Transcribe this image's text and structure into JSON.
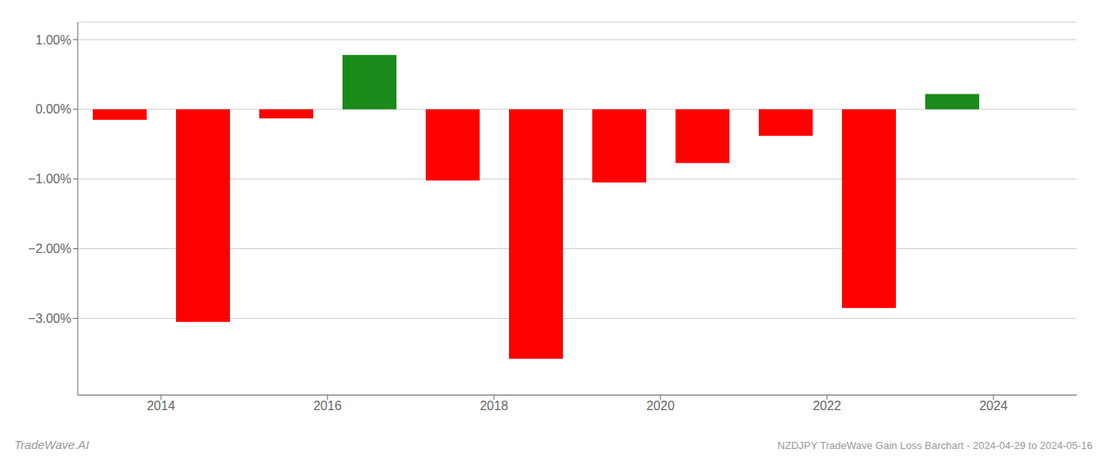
{
  "chart_data": {
    "type": "bar",
    "title": "NZDJPY TradeWave Gain Loss Barchart - 2024-04-29 to 2024-05-16",
    "annotations": [
      "TradeWave.AI"
    ],
    "x": [
      2013.5,
      2014.5,
      2015.5,
      2016.5,
      2017.5,
      2018.5,
      2019.5,
      2020.5,
      2021.5,
      2022.5,
      2023.5
    ],
    "values": [
      -0.15,
      -3.05,
      -0.13,
      0.78,
      -1.02,
      -3.58,
      -1.05,
      -0.77,
      -0.38,
      -2.85,
      0.22
    ],
    "colors": [
      "#ff0000",
      "#ff0000",
      "#ff0000",
      "#1a8a1a",
      "#ff0000",
      "#ff0000",
      "#ff0000",
      "#ff0000",
      "#ff0000",
      "#ff0000",
      "#1a8a1a"
    ],
    "xlim": [
      2013.0,
      2025.0
    ],
    "xticks": [
      2014,
      2016,
      2018,
      2020,
      2022,
      2024
    ],
    "ylim": [
      -4.1,
      1.25
    ],
    "yticks": [
      {
        "value": 1.0,
        "label": "1.00%"
      },
      {
        "value": 0.0,
        "label": "0.00%"
      },
      {
        "value": -1.0,
        "label": "−1.00%"
      },
      {
        "value": -2.0,
        "label": "−2.00%"
      },
      {
        "value": -3.0,
        "label": "−3.00%"
      }
    ],
    "grid": true
  }
}
